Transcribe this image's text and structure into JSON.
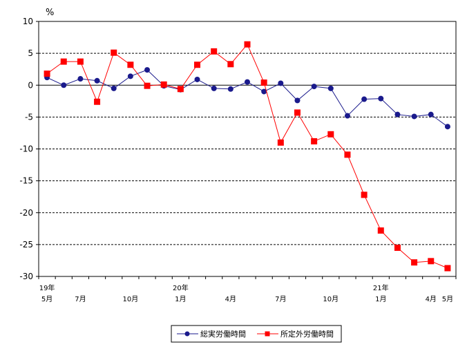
{
  "chart_data": {
    "type": "line",
    "unit_label": "%",
    "ylim": [
      -30,
      10
    ],
    "y_ticks": [
      10,
      5,
      0,
      -5,
      -10,
      -15,
      -20,
      -25,
      -30
    ],
    "x_tick_labels": [
      {
        "index": 0,
        "top": "19年",
        "bottom": "5月"
      },
      {
        "index": 2,
        "top": "",
        "bottom": "7月"
      },
      {
        "index": 5,
        "top": "",
        "bottom": "10月"
      },
      {
        "index": 8,
        "top": "20年",
        "bottom": "1月"
      },
      {
        "index": 11,
        "top": "",
        "bottom": "4月"
      },
      {
        "index": 14,
        "top": "",
        "bottom": "7月"
      },
      {
        "index": 17,
        "top": "",
        "bottom": "10月"
      },
      {
        "index": 20,
        "top": "21年",
        "bottom": "1月"
      },
      {
        "index": 23,
        "top": "",
        "bottom": "4月"
      },
      {
        "index": 24,
        "top": "",
        "bottom": "5月"
      }
    ],
    "grid": "dashed-horizontal",
    "legend_position": "bottom",
    "series": [
      {
        "name": "総実労働時間",
        "color": "#1a1a8c",
        "marker": "circle",
        "values": [
          1.2,
          0.0,
          1.0,
          0.7,
          -0.5,
          1.4,
          2.4,
          -0.1,
          -0.7,
          0.9,
          -0.5,
          -0.6,
          0.5,
          -1.0,
          0.3,
          -2.4,
          -0.2,
          -0.5,
          -4.8,
          -2.2,
          -2.1,
          -4.6,
          -4.9,
          -4.6,
          -6.5
        ]
      },
      {
        "name": "所定外労働時間",
        "color": "#ff0000",
        "marker": "square",
        "values": [
          1.8,
          3.7,
          3.7,
          -2.6,
          5.1,
          3.2,
          -0.1,
          0.1,
          -0.6,
          3.2,
          5.3,
          3.3,
          6.4,
          0.4,
          -9.0,
          -4.3,
          -8.8,
          -7.7,
          -10.9,
          -17.2,
          -22.8,
          -25.5,
          -27.8,
          -27.6,
          -28.7
        ]
      }
    ]
  }
}
